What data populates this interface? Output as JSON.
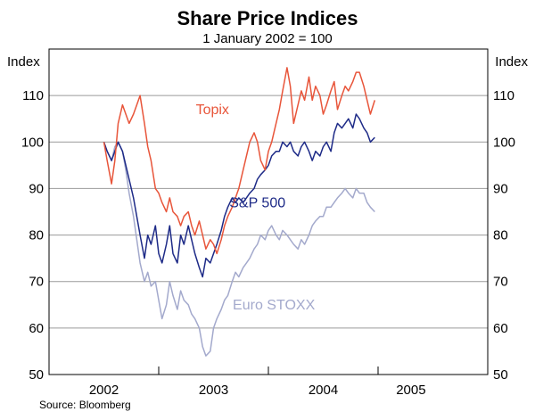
{
  "chart_data": {
    "type": "line",
    "title": "Share Price Indices",
    "subtitle": "1 January 2002 = 100",
    "ylabel_left": "Index",
    "ylabel_right": "Index",
    "source": "Source: Bloomberg",
    "ylim": [
      50,
      120
    ],
    "yticks": [
      50,
      60,
      70,
      80,
      90,
      100,
      110
    ],
    "xlim": [
      2001.5,
      2005.5
    ],
    "year_dividers": [
      2002.5,
      2003.5,
      2004.5
    ],
    "x_tick_labels": [
      {
        "label": "2002",
        "x": 2002.0
      },
      {
        "label": "2003",
        "x": 2003.0
      },
      {
        "label": "2004",
        "x": 2004.0
      },
      {
        "label": "2005",
        "x": 2004.8
      }
    ],
    "series": [
      {
        "name": "Topix",
        "color": "#e8553a",
        "label_at": {
          "x": 2002.99,
          "y": 106
        },
        "points": [
          [
            2002.0,
            100
          ],
          [
            2002.03,
            96
          ],
          [
            2002.07,
            91
          ],
          [
            2002.1,
            96
          ],
          [
            2002.13,
            104
          ],
          [
            2002.17,
            108
          ],
          [
            2002.2,
            106
          ],
          [
            2002.23,
            104
          ],
          [
            2002.27,
            106
          ],
          [
            2002.3,
            108
          ],
          [
            2002.33,
            110
          ],
          [
            2002.37,
            104
          ],
          [
            2002.4,
            99
          ],
          [
            2002.43,
            96
          ],
          [
            2002.47,
            90
          ],
          [
            2002.5,
            89
          ],
          [
            2002.53,
            87
          ],
          [
            2002.57,
            85
          ],
          [
            2002.6,
            88
          ],
          [
            2002.63,
            85
          ],
          [
            2002.67,
            84
          ],
          [
            2002.7,
            82
          ],
          [
            2002.73,
            84
          ],
          [
            2002.77,
            85
          ],
          [
            2002.8,
            82
          ],
          [
            2002.83,
            80
          ],
          [
            2002.87,
            83
          ],
          [
            2002.9,
            80
          ],
          [
            2002.93,
            77
          ],
          [
            2002.97,
            79
          ],
          [
            2003.0,
            78
          ],
          [
            2003.03,
            76
          ],
          [
            2003.07,
            79
          ],
          [
            2003.1,
            82
          ],
          [
            2003.13,
            84
          ],
          [
            2003.17,
            86
          ],
          [
            2003.2,
            88
          ],
          [
            2003.23,
            90
          ],
          [
            2003.27,
            94
          ],
          [
            2003.3,
            97
          ],
          [
            2003.33,
            100
          ],
          [
            2003.37,
            102
          ],
          [
            2003.4,
            100
          ],
          [
            2003.43,
            96
          ],
          [
            2003.47,
            94
          ],
          [
            2003.5,
            98
          ],
          [
            2003.53,
            100
          ],
          [
            2003.57,
            104
          ],
          [
            2003.6,
            107
          ],
          [
            2003.63,
            111
          ],
          [
            2003.67,
            116
          ],
          [
            2003.7,
            112
          ],
          [
            2003.73,
            104
          ],
          [
            2003.77,
            108
          ],
          [
            2003.8,
            111
          ],
          [
            2003.83,
            109
          ],
          [
            2003.87,
            114
          ],
          [
            2003.9,
            109
          ],
          [
            2003.93,
            112
          ],
          [
            2003.97,
            110
          ],
          [
            2004.0,
            106
          ],
          [
            2004.03,
            108
          ],
          [
            2004.07,
            111
          ],
          [
            2004.1,
            113
          ],
          [
            2004.13,
            107
          ],
          [
            2004.17,
            110
          ],
          [
            2004.2,
            112
          ],
          [
            2004.23,
            111
          ],
          [
            2004.27,
            113
          ],
          [
            2004.3,
            115
          ],
          [
            2004.33,
            115
          ],
          [
            2004.37,
            112
          ],
          [
            2004.4,
            109
          ],
          [
            2004.43,
            106
          ],
          [
            2004.47,
            109
          ]
        ]
      },
      {
        "name": "S&P 500",
        "color": "#1d2a87",
        "label_at": {
          "x": 2003.4,
          "y": 86
        },
        "points": [
          [
            2002.0,
            100
          ],
          [
            2002.03,
            98
          ],
          [
            2002.07,
            96
          ],
          [
            2002.1,
            98
          ],
          [
            2002.13,
            100
          ],
          [
            2002.17,
            98
          ],
          [
            2002.2,
            95
          ],
          [
            2002.23,
            92
          ],
          [
            2002.27,
            88
          ],
          [
            2002.3,
            84
          ],
          [
            2002.33,
            80
          ],
          [
            2002.37,
            75
          ],
          [
            2002.4,
            80
          ],
          [
            2002.43,
            78
          ],
          [
            2002.47,
            82
          ],
          [
            2002.5,
            76
          ],
          [
            2002.53,
            74
          ],
          [
            2002.57,
            78
          ],
          [
            2002.6,
            82
          ],
          [
            2002.63,
            76
          ],
          [
            2002.67,
            74
          ],
          [
            2002.7,
            80
          ],
          [
            2002.73,
            78
          ],
          [
            2002.77,
            82
          ],
          [
            2002.8,
            79
          ],
          [
            2002.83,
            76
          ],
          [
            2002.87,
            73
          ],
          [
            2002.9,
            71
          ],
          [
            2002.93,
            75
          ],
          [
            2002.97,
            74
          ],
          [
            2003.0,
            76
          ],
          [
            2003.03,
            78
          ],
          [
            2003.07,
            81
          ],
          [
            2003.1,
            84
          ],
          [
            2003.13,
            86
          ],
          [
            2003.17,
            88
          ],
          [
            2003.2,
            87
          ],
          [
            2003.23,
            88
          ],
          [
            2003.27,
            87
          ],
          [
            2003.3,
            88
          ],
          [
            2003.33,
            89
          ],
          [
            2003.37,
            90
          ],
          [
            2003.4,
            92
          ],
          [
            2003.43,
            93
          ],
          [
            2003.47,
            94
          ],
          [
            2003.5,
            95
          ],
          [
            2003.53,
            97
          ],
          [
            2003.57,
            98
          ],
          [
            2003.6,
            98
          ],
          [
            2003.63,
            100
          ],
          [
            2003.67,
            99
          ],
          [
            2003.7,
            100
          ],
          [
            2003.73,
            98
          ],
          [
            2003.77,
            97
          ],
          [
            2003.8,
            99
          ],
          [
            2003.83,
            100
          ],
          [
            2003.87,
            98
          ],
          [
            2003.9,
            96
          ],
          [
            2003.93,
            98
          ],
          [
            2003.97,
            97
          ],
          [
            2004.0,
            99
          ],
          [
            2004.03,
            100
          ],
          [
            2004.07,
            98
          ],
          [
            2004.1,
            102
          ],
          [
            2004.13,
            104
          ],
          [
            2004.17,
            103
          ],
          [
            2004.2,
            104
          ],
          [
            2004.23,
            105
          ],
          [
            2004.27,
            103
          ],
          [
            2004.3,
            106
          ],
          [
            2004.33,
            105
          ],
          [
            2004.37,
            103
          ],
          [
            2004.4,
            102
          ],
          [
            2004.43,
            100
          ],
          [
            2004.47,
            101
          ]
        ]
      },
      {
        "name": "Euro STOXX",
        "color": "#a3a9cc",
        "label_at": {
          "x": 2003.55,
          "y": 64
        },
        "points": [
          [
            2002.0,
            100
          ],
          [
            2002.03,
            98
          ],
          [
            2002.07,
            96
          ],
          [
            2002.1,
            99
          ],
          [
            2002.13,
            100
          ],
          [
            2002.17,
            98
          ],
          [
            2002.2,
            94
          ],
          [
            2002.23,
            89
          ],
          [
            2002.27,
            84
          ],
          [
            2002.3,
            79
          ],
          [
            2002.33,
            74
          ],
          [
            2002.37,
            70
          ],
          [
            2002.4,
            72
          ],
          [
            2002.43,
            69
          ],
          [
            2002.47,
            70
          ],
          [
            2002.5,
            66
          ],
          [
            2002.53,
            62
          ],
          [
            2002.57,
            65
          ],
          [
            2002.6,
            70
          ],
          [
            2002.63,
            67
          ],
          [
            2002.67,
            64
          ],
          [
            2002.7,
            68
          ],
          [
            2002.73,
            66
          ],
          [
            2002.77,
            65
          ],
          [
            2002.8,
            63
          ],
          [
            2002.83,
            62
          ],
          [
            2002.87,
            60
          ],
          [
            2002.9,
            56
          ],
          [
            2002.93,
            54
          ],
          [
            2002.97,
            55
          ],
          [
            2003.0,
            60
          ],
          [
            2003.03,
            62
          ],
          [
            2003.07,
            64
          ],
          [
            2003.1,
            66
          ],
          [
            2003.13,
            67
          ],
          [
            2003.17,
            70
          ],
          [
            2003.2,
            72
          ],
          [
            2003.23,
            71
          ],
          [
            2003.27,
            73
          ],
          [
            2003.3,
            74
          ],
          [
            2003.33,
            75
          ],
          [
            2003.37,
            77
          ],
          [
            2003.4,
            78
          ],
          [
            2003.43,
            80
          ],
          [
            2003.47,
            79
          ],
          [
            2003.5,
            81
          ],
          [
            2003.53,
            82
          ],
          [
            2003.57,
            80
          ],
          [
            2003.6,
            79
          ],
          [
            2003.63,
            81
          ],
          [
            2003.67,
            80
          ],
          [
            2003.7,
            79
          ],
          [
            2003.73,
            78
          ],
          [
            2003.77,
            77
          ],
          [
            2003.8,
            79
          ],
          [
            2003.83,
            78
          ],
          [
            2003.87,
            80
          ],
          [
            2003.9,
            82
          ],
          [
            2003.93,
            83
          ],
          [
            2003.97,
            84
          ],
          [
            2004.0,
            84
          ],
          [
            2004.03,
            86
          ],
          [
            2004.07,
            86
          ],
          [
            2004.1,
            87
          ],
          [
            2004.13,
            88
          ],
          [
            2004.17,
            89
          ],
          [
            2004.2,
            90
          ],
          [
            2004.23,
            89
          ],
          [
            2004.27,
            88
          ],
          [
            2004.3,
            90
          ],
          [
            2004.33,
            89
          ],
          [
            2004.37,
            89
          ],
          [
            2004.4,
            87
          ],
          [
            2004.43,
            86
          ],
          [
            2004.47,
            85
          ]
        ]
      }
    ]
  }
}
